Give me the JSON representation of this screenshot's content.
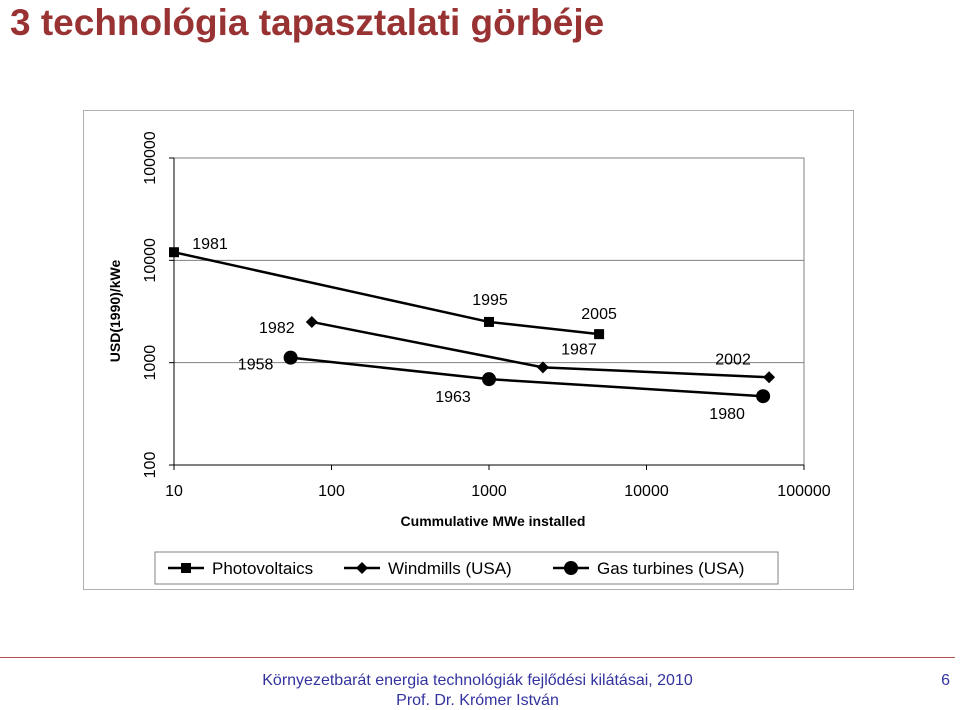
{
  "slide": {
    "title": "3 technológia tapasztalati görbéje",
    "footer_line1": "Környezetbarát energia technológiák fejlődési kilátásai, 2010",
    "footer_line2": "Prof. Dr. Krómer István",
    "page_number": "6"
  },
  "chart_data": {
    "type": "line",
    "title": "",
    "xlabel": "Cummulative MWe installed",
    "ylabel": "USD(1990)/kWe",
    "xscale": "log",
    "yscale": "log",
    "xlim": [
      10,
      100000
    ],
    "ylim": [
      100,
      100000
    ],
    "xticks": [
      "10",
      "100",
      "1000",
      "10000",
      "100000"
    ],
    "yticks": [
      "100",
      "1000",
      "10000",
      "100000"
    ],
    "grid": "horizontal",
    "legend": "bottom",
    "series": [
      {
        "name": "Photovoltaics",
        "marker": "square",
        "points": [
          {
            "x": 10,
            "y": 12000,
            "label": "1981"
          },
          {
            "x": 1000,
            "y": 2500,
            "label": "1995"
          },
          {
            "x": 5000,
            "y": 1900,
            "label": "2005"
          }
        ]
      },
      {
        "name": "Windmills (USA)",
        "marker": "diamond",
        "points": [
          {
            "x": 75,
            "y": 2500,
            "label": "1982"
          },
          {
            "x": 2200,
            "y": 900,
            "label": "1987"
          },
          {
            "x": 60000,
            "y": 720,
            "label": "2002"
          }
        ]
      },
      {
        "name": "Gas turbines (USA)",
        "marker": "circle",
        "points": [
          {
            "x": 55,
            "y": 1120,
            "label": "1958"
          },
          {
            "x": 1000,
            "y": 690,
            "label": "1963"
          },
          {
            "x": 55000,
            "y": 470,
            "label": "1980"
          }
        ]
      }
    ]
  }
}
